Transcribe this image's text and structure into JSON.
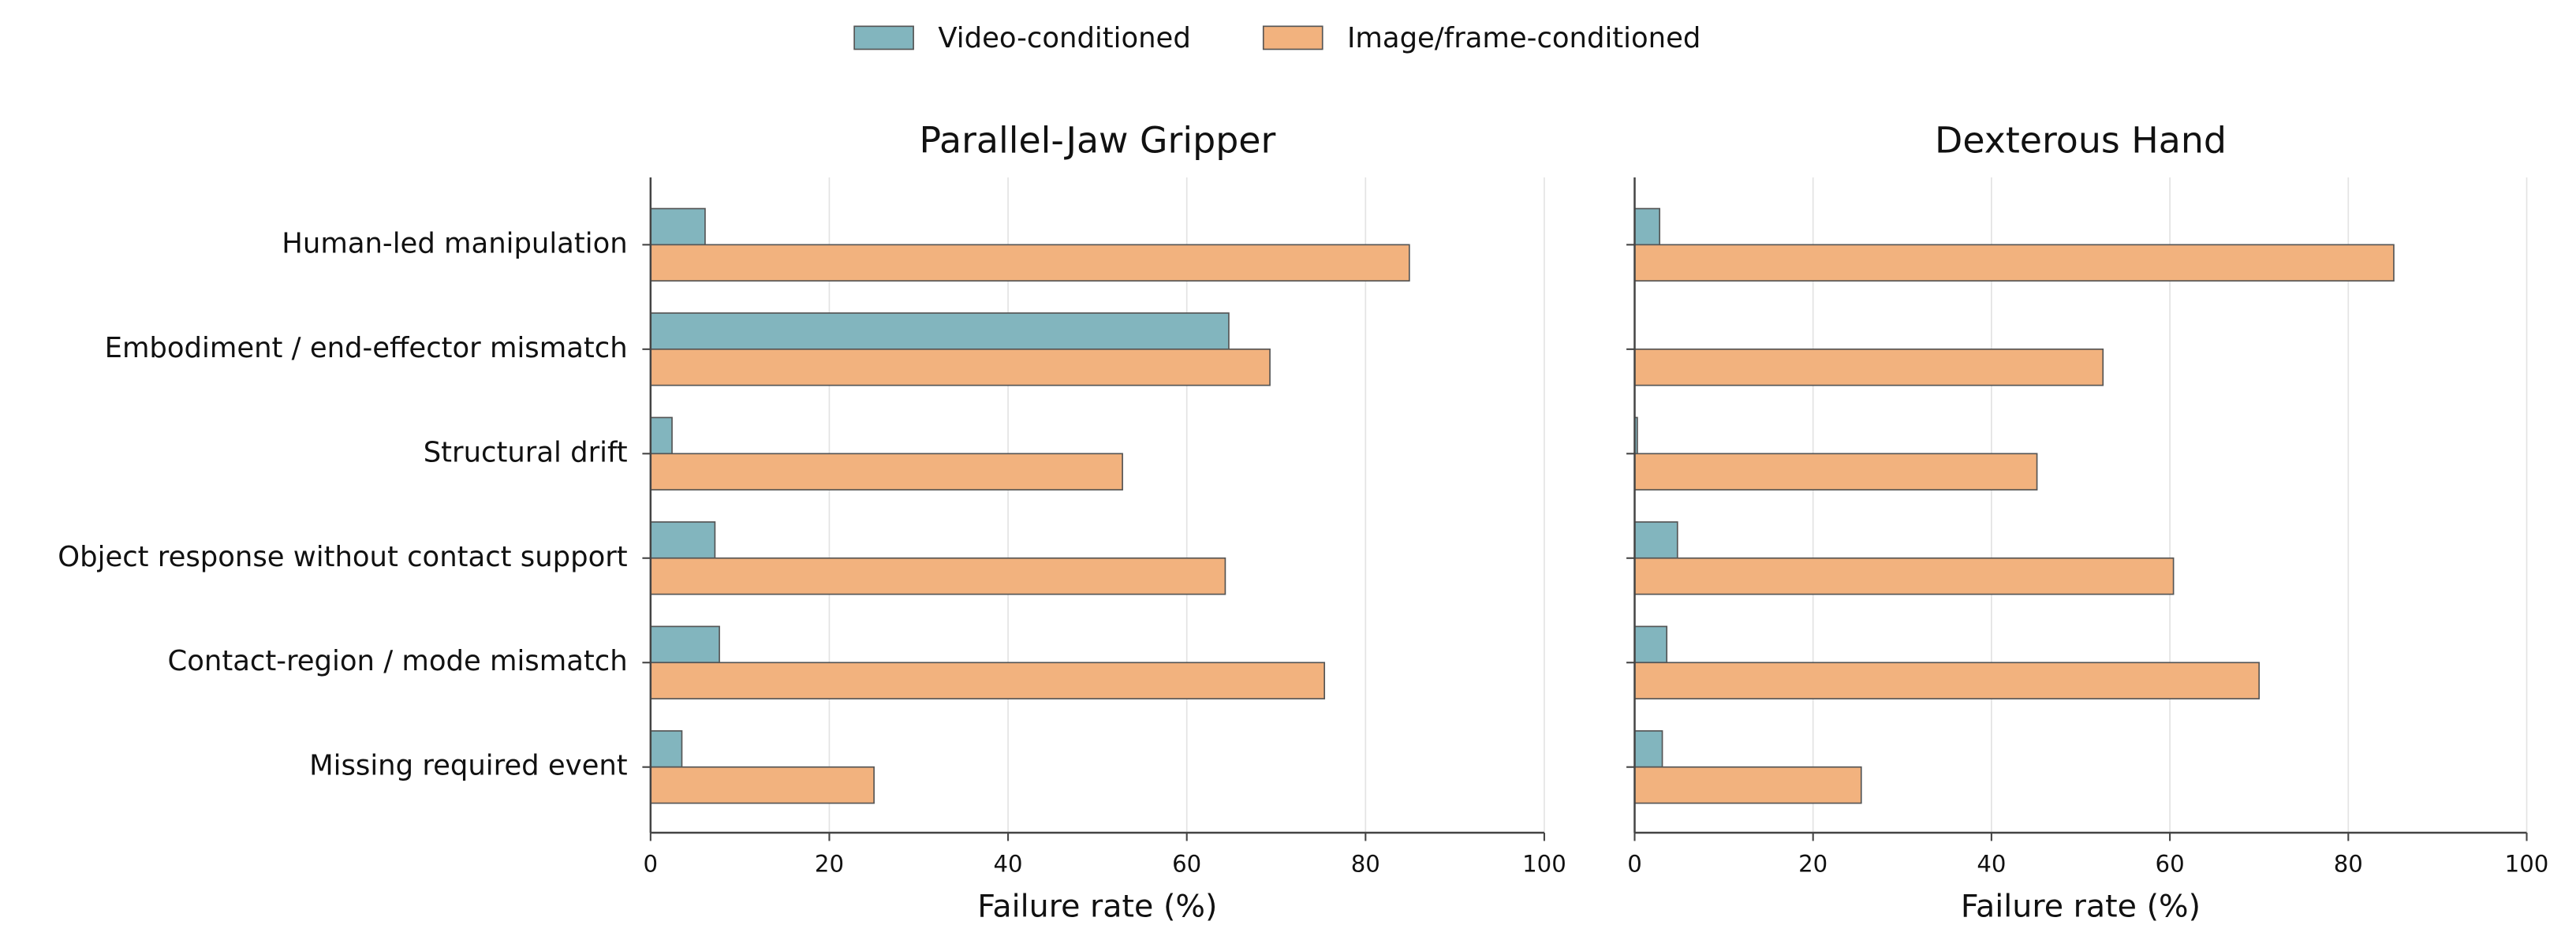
{
  "chart_data": {
    "type": "bar",
    "orientation": "horizontal",
    "categories": [
      "Human-led manipulation",
      "Embodiment / end-effector mismatch",
      "Structural drift",
      "Object response without contact support",
      "Contact-region / mode mismatch",
      "Missing required event"
    ],
    "series": [
      {
        "name": "Video-conditioned",
        "color": "#82b5be"
      },
      {
        "name": "Image/frame-conditioned",
        "color": "#f2b27e"
      }
    ],
    "xlabel": "Failure rate (%)",
    "xlim": [
      0,
      100
    ],
    "xticks": [
      0,
      20,
      40,
      60,
      80,
      100
    ],
    "grid": true,
    "legend": "top",
    "panels": [
      {
        "title": "Parallel-Jaw Gripper",
        "values": [
          [
            6.1,
            64.7,
            2.4,
            7.2,
            7.7,
            3.5
          ],
          [
            84.9,
            69.3,
            52.8,
            64.3,
            75.4,
            25.0
          ]
        ]
      },
      {
        "title": "Dexterous Hand",
        "values": [
          [
            2.8,
            0,
            0.3,
            4.8,
            3.6,
            3.1
          ],
          [
            85.1,
            52.5,
            45.1,
            60.4,
            70.0,
            25.4
          ]
        ]
      }
    ]
  }
}
